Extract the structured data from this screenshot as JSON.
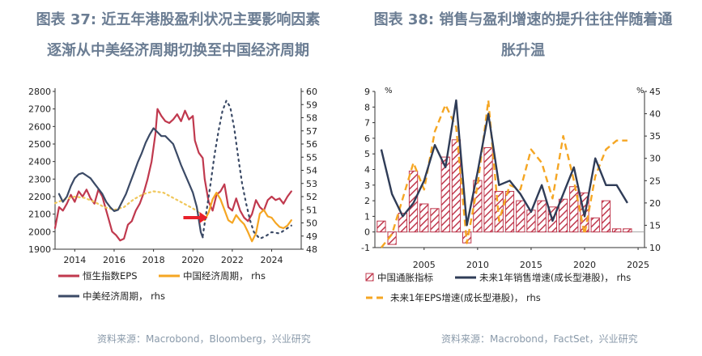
{
  "left_panel": {
    "title_line1": "图表 37: 近五年港股盈利状况主要影响因素",
    "title_line2": "逐渐从中美经济周期切换至中国经济周期",
    "source": "资料来源：Macrobond，Bloomberg，兴业研究"
  },
  "right_panel": {
    "title_line1": "图表 38: 销售与盈利增速的提升往往伴随着通",
    "title_line2": "胀升温",
    "source": "资料来源：Macrobond，FactSet，兴业研究"
  },
  "colors": {
    "title": "#6b7d93",
    "hsi_eps": "#c0394e",
    "china_cycle": "#f5a623",
    "us_china_cycle": "#3b4a66",
    "china_cycle_dotted": "#f0c75a",
    "us_china_dotted": "#3b4a66",
    "arrow": "#e8202a",
    "inflation_bar": "#c0394e",
    "sales_growth": "#2f3c57",
    "eps_growth": "#f5a623"
  },
  "chart_data": [
    {
      "type": "line",
      "left_axis": {
        "ylim": [
          1900,
          2800
        ],
        "ticks": [
          1900,
          2000,
          2100,
          2200,
          2300,
          2400,
          2500,
          2600,
          2700,
          2800
        ]
      },
      "right_axis": {
        "ylim": [
          48,
          60
        ],
        "ticks": [
          48,
          49,
          50,
          51,
          52,
          53,
          54,
          55,
          56,
          57,
          58,
          59,
          60
        ],
        "label": "rhs"
      },
      "xlim": [
        2013,
        2025.5
      ],
      "x_ticks": [
        2014,
        2016,
        2018,
        2020,
        2022,
        2024
      ],
      "series": [
        {
          "name": "恒生指数EPS",
          "axis": "left",
          "style": "solid",
          "points": [
            [
              2013.0,
              2020
            ],
            [
              2013.2,
              2140
            ],
            [
              2013.4,
              2120
            ],
            [
              2013.6,
              2160
            ],
            [
              2013.8,
              2210
            ],
            [
              2014.0,
              2170
            ],
            [
              2014.2,
              2230
            ],
            [
              2014.4,
              2200
            ],
            [
              2014.6,
              2240
            ],
            [
              2014.8,
              2190
            ],
            [
              2015.0,
              2160
            ],
            [
              2015.2,
              2240
            ],
            [
              2015.4,
              2200
            ],
            [
              2015.5,
              2160
            ],
            [
              2015.7,
              2080
            ],
            [
              2015.9,
              2000
            ],
            [
              2016.1,
              1980
            ],
            [
              2016.3,
              1950
            ],
            [
              2016.5,
              1960
            ],
            [
              2016.7,
              2040
            ],
            [
              2016.9,
              2060
            ],
            [
              2017.1,
              2120
            ],
            [
              2017.3,
              2160
            ],
            [
              2017.5,
              2220
            ],
            [
              2017.7,
              2300
            ],
            [
              2017.9,
              2400
            ],
            [
              2018.1,
              2560
            ],
            [
              2018.2,
              2700
            ],
            [
              2018.4,
              2660
            ],
            [
              2018.6,
              2630
            ],
            [
              2018.8,
              2620
            ],
            [
              2019.0,
              2640
            ],
            [
              2019.2,
              2670
            ],
            [
              2019.4,
              2630
            ],
            [
              2019.6,
              2690
            ],
            [
              2019.8,
              2640
            ],
            [
              2020.0,
              2660
            ],
            [
              2020.1,
              2520
            ],
            [
              2020.3,
              2450
            ],
            [
              2020.5,
              2420
            ],
            [
              2020.6,
              2300
            ],
            [
              2020.8,
              2170
            ],
            [
              2021.0,
              2120
            ],
            [
              2021.2,
              2210
            ],
            [
              2021.4,
              2230
            ],
            [
              2021.6,
              2270
            ],
            [
              2021.8,
              2140
            ],
            [
              2022.0,
              2120
            ],
            [
              2022.2,
              2190
            ],
            [
              2022.4,
              2120
            ],
            [
              2022.6,
              2080
            ],
            [
              2022.8,
              2060
            ],
            [
              2023.0,
              2100
            ],
            [
              2023.2,
              2180
            ],
            [
              2023.4,
              2140
            ],
            [
              2023.6,
              2120
            ],
            [
              2023.8,
              2180
            ],
            [
              2024.0,
              2200
            ],
            [
              2024.2,
              2180
            ],
            [
              2024.4,
              2190
            ],
            [
              2024.6,
              2160
            ],
            [
              2024.8,
              2200
            ],
            [
              2025.0,
              2230
            ]
          ]
        },
        {
          "name": "中国经济周期，rhs",
          "axis": "right",
          "style": "solid",
          "points": [
            [
              2020.6,
              50.2
            ],
            [
              2020.8,
              50.8
            ],
            [
              2021.0,
              51.8
            ],
            [
              2021.2,
              52.3
            ],
            [
              2021.4,
              51.8
            ],
            [
              2021.6,
              51.0
            ],
            [
              2021.8,
              50.2
            ],
            [
              2022.0,
              50.0
            ],
            [
              2022.2,
              50.6
            ],
            [
              2022.4,
              50.2
            ],
            [
              2022.6,
              49.9
            ],
            [
              2022.8,
              49.3
            ],
            [
              2023.0,
              48.6
            ],
            [
              2023.2,
              49.2
            ],
            [
              2023.4,
              50.7
            ],
            [
              2023.6,
              51.0
            ],
            [
              2023.8,
              50.5
            ],
            [
              2024.0,
              50.4
            ],
            [
              2024.2,
              50.0
            ],
            [
              2024.4,
              49.7
            ],
            [
              2024.6,
              49.6
            ],
            [
              2024.8,
              49.8
            ],
            [
              2025.0,
              50.2
            ]
          ]
        },
        {
          "name": "中国经济周期（早期，点线）",
          "axis": "right",
          "style": "dotted",
          "points": [
            [
              2013.0,
              51.5
            ],
            [
              2013.5,
              51.8
            ],
            [
              2014.0,
              52.0
            ],
            [
              2014.5,
              51.9
            ],
            [
              2015.0,
              51.6
            ],
            [
              2015.5,
              51.2
            ],
            [
              2016.0,
              51.0
            ],
            [
              2016.5,
              51.2
            ],
            [
              2017.0,
              51.8
            ],
            [
              2017.5,
              52.2
            ],
            [
              2018.0,
              52.4
            ],
            [
              2018.5,
              52.3
            ],
            [
              2019.0,
              51.9
            ],
            [
              2019.5,
              51.5
            ],
            [
              2020.0,
              51.1
            ],
            [
              2020.4,
              50.7
            ],
            [
              2020.6,
              50.3
            ]
          ]
        },
        {
          "name": "中美经济周期，rhs",
          "axis": "right",
          "style": "solid",
          "points": [
            [
              2013.2,
              52.2
            ],
            [
              2013.4,
              51.6
            ],
            [
              2013.6,
              52.0
            ],
            [
              2013.8,
              52.8
            ],
            [
              2014.0,
              53.4
            ],
            [
              2014.2,
              53.7
            ],
            [
              2014.4,
              53.8
            ],
            [
              2014.6,
              53.6
            ],
            [
              2014.8,
              53.4
            ],
            [
              2015.0,
              53.0
            ],
            [
              2015.2,
              52.6
            ],
            [
              2015.4,
              52.2
            ],
            [
              2015.6,
              51.6
            ],
            [
              2015.8,
              51.2
            ],
            [
              2016.0,
              50.9
            ],
            [
              2016.2,
              51.0
            ],
            [
              2016.4,
              51.6
            ],
            [
              2016.6,
              52.2
            ],
            [
              2016.8,
              53.0
            ],
            [
              2017.0,
              53.8
            ],
            [
              2017.2,
              54.6
            ],
            [
              2017.4,
              55.3
            ],
            [
              2017.6,
              56.1
            ],
            [
              2017.8,
              56.7
            ],
            [
              2018.0,
              57.2
            ],
            [
              2018.2,
              56.9
            ],
            [
              2018.4,
              56.6
            ],
            [
              2018.6,
              56.6
            ],
            [
              2018.8,
              56.3
            ],
            [
              2019.0,
              56.0
            ],
            [
              2019.2,
              55.2
            ],
            [
              2019.4,
              54.4
            ],
            [
              2019.6,
              53.7
            ],
            [
              2019.8,
              53.0
            ],
            [
              2020.0,
              52.3
            ],
            [
              2020.2,
              51.2
            ],
            [
              2020.4,
              49.3
            ],
            [
              2020.5,
              48.9
            ]
          ]
        },
        {
          "name": "中美经济周期（预测，点线）",
          "axis": "right",
          "style": "dotted",
          "points": [
            [
              2020.5,
              49.0
            ],
            [
              2020.7,
              51.0
            ],
            [
              2020.9,
              53.0
            ],
            [
              2021.1,
              55.2
            ],
            [
              2021.3,
              57.0
            ],
            [
              2021.5,
              58.5
            ],
            [
              2021.7,
              59.3
            ],
            [
              2021.9,
              58.8
            ],
            [
              2022.1,
              57.2
            ],
            [
              2022.3,
              55.0
            ],
            [
              2022.5,
              53.0
            ],
            [
              2022.7,
              51.5
            ],
            [
              2022.9,
              50.2
            ],
            [
              2023.1,
              49.3
            ],
            [
              2023.4,
              48.8
            ],
            [
              2023.7,
              49.0
            ],
            [
              2024.0,
              49.3
            ],
            [
              2024.4,
              49.2
            ],
            [
              2024.8,
              49.6
            ],
            [
              2025.0,
              49.8
            ]
          ]
        }
      ],
      "legend": [
        "恒生指数EPS",
        "中国经济周期， rhs",
        "中美经济周期， rhs"
      ],
      "annotation": "red arrow pointing to 2020.8"
    },
    {
      "type": "bar",
      "left_axis": {
        "ylim": [
          -1,
          9
        ],
        "ticks": [
          -1,
          0,
          1,
          2,
          3,
          4,
          5,
          6,
          7,
          8,
          9
        ],
        "unit": "%"
      },
      "right_axis": {
        "ylim": [
          10,
          45
        ],
        "ticks": [
          10,
          15,
          20,
          25,
          30,
          35,
          40,
          45
        ],
        "unit": "%"
      },
      "x_ticks": [
        2005,
        2010,
        2015,
        2020,
        2025
      ],
      "years": [
        2001,
        2002,
        2003,
        2004,
        2005,
        2006,
        2007,
        2008,
        2009,
        2010,
        2011,
        2012,
        2013,
        2014,
        2015,
        2016,
        2017,
        2018,
        2019,
        2020,
        2021,
        2022,
        2023,
        2024
      ],
      "series": [
        {
          "name": "中国通胀指标",
          "axis": "left",
          "values": [
            0.7,
            -0.8,
            1.2,
            3.9,
            1.8,
            1.5,
            4.8,
            5.9,
            -0.7,
            3.3,
            5.4,
            2.6,
            2.6,
            2.0,
            1.4,
            2.0,
            1.6,
            2.1,
            2.9,
            2.5,
            0.9,
            2.0,
            0.2,
            0.2
          ]
        },
        {
          "name": "未来1年销售增速(成长型港股)， rhs",
          "axis": "right",
          "values": [
            32,
            22,
            17,
            20,
            25,
            33,
            28,
            43,
            15,
            27,
            40,
            24,
            25,
            22,
            18,
            24,
            16,
            22,
            28,
            17,
            30,
            24,
            24,
            20
          ]
        },
        {
          "name": "未来1年EPS增速(成长型港股)， rhs",
          "axis": "right",
          "values": [
            10,
            13,
            21,
            29,
            23,
            36,
            42,
            37,
            11,
            24,
            43,
            16,
            24,
            23,
            32,
            29,
            21,
            35,
            25,
            13,
            26,
            32,
            34,
            34
          ]
        }
      ],
      "legend": [
        "中国通胀指标",
        "未来1年销售增速(成长型港股)， rhs",
        "未来1年EPS增速(成长型港股)， rhs"
      ]
    }
  ]
}
